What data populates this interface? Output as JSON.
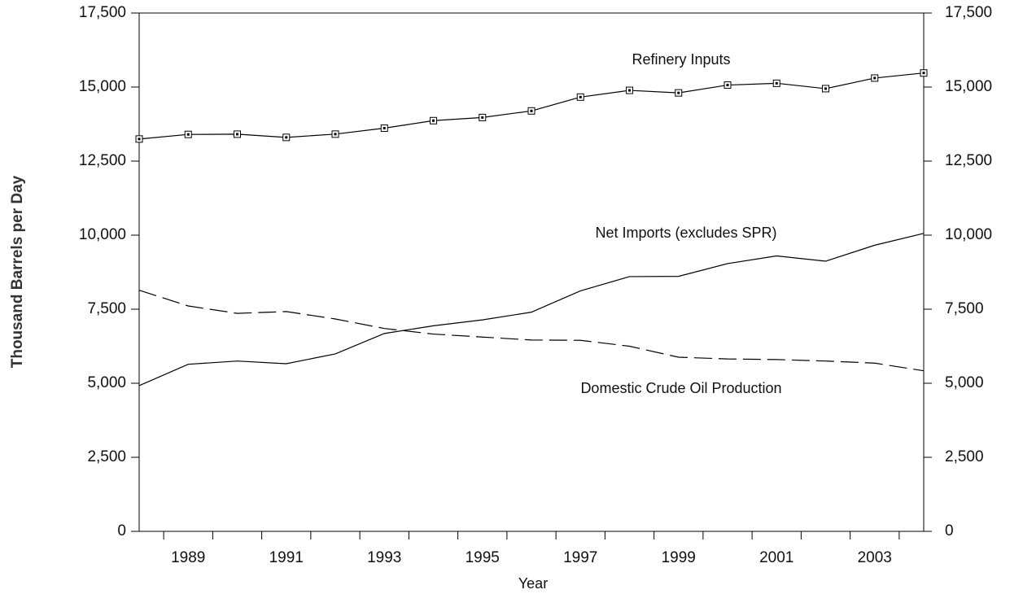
{
  "chart_data": {
    "type": "line",
    "x_label": "Year",
    "y_label": "Thousand Barrels per Day",
    "x": [
      1988,
      1989,
      1990,
      1991,
      1992,
      1993,
      1994,
      1995,
      1996,
      1997,
      1998,
      1999,
      2000,
      2001,
      2002,
      2003,
      2004
    ],
    "series": [
      {
        "name": "Refinery Inputs",
        "color": "#000000",
        "style": "solid",
        "marker": "square",
        "values": [
          13246,
          13401,
          13409,
          13301,
          13411,
          13613,
          13866,
          13973,
          14195,
          14662,
          14889,
          14804,
          15067,
          15128,
          14947,
          15304,
          15475
        ]
      },
      {
        "name": "Net Imports (excludes SPR)",
        "color": "#000000",
        "style": "solid",
        "marker": "none",
        "values": [
          4920,
          5640,
          5750,
          5660,
          5990,
          6680,
          6940,
          7140,
          7400,
          8120,
          8600,
          8610,
          9040,
          9300,
          9120,
          9660,
          10060
        ]
      },
      {
        "name": "Domestic Crude Oil Production",
        "color": "#000000",
        "style": "dashed",
        "marker": "none",
        "values": [
          8140,
          7610,
          7360,
          7420,
          7170,
          6850,
          6660,
          6560,
          6460,
          6450,
          6250,
          5880,
          5820,
          5800,
          5750,
          5680,
          5420
        ]
      }
    ],
    "xlim": [
      1988,
      2004
    ],
    "xticks": [
      1989,
      1991,
      1993,
      1995,
      1997,
      1999,
      2001,
      2003
    ],
    "xminorticks": [
      1988.5,
      1989.5,
      1990.5,
      1991.5,
      1992.5,
      1993.5,
      1994.5,
      1995.5,
      1996.5,
      1997.5,
      1998.5,
      1999.5,
      2000.5,
      2001.5,
      2002.5,
      2003.5
    ],
    "ylim": [
      0,
      17500
    ],
    "yticks": [
      0,
      {
        "value": 2500,
        "label": "2,500"
      },
      {
        "value": 5000,
        "label": "5,000"
      },
      {
        "value": 7500,
        "label": "7,500"
      },
      {
        "value": 10000,
        "label": "10,000"
      },
      {
        "value": 12500,
        "label": "12,500"
      },
      {
        "value": 15000,
        "label": "15,000"
      },
      {
        "value": 17500,
        "label": "17,500"
      }
    ],
    "y2lim": [
      0,
      17500
    ],
    "y2ticks": [
      0,
      {
        "value": 2500,
        "label": "2,500"
      },
      {
        "value": 5000,
        "label": "5,000"
      },
      {
        "value": 7500,
        "label": "7,500"
      },
      {
        "value": 10000,
        "label": "10,000"
      },
      {
        "value": 12500,
        "label": "12,500"
      },
      {
        "value": 15000,
        "label": "15,000"
      },
      {
        "value": 17500,
        "label": "17,500"
      }
    ],
    "legend": "inline",
    "grid": false
  }
}
